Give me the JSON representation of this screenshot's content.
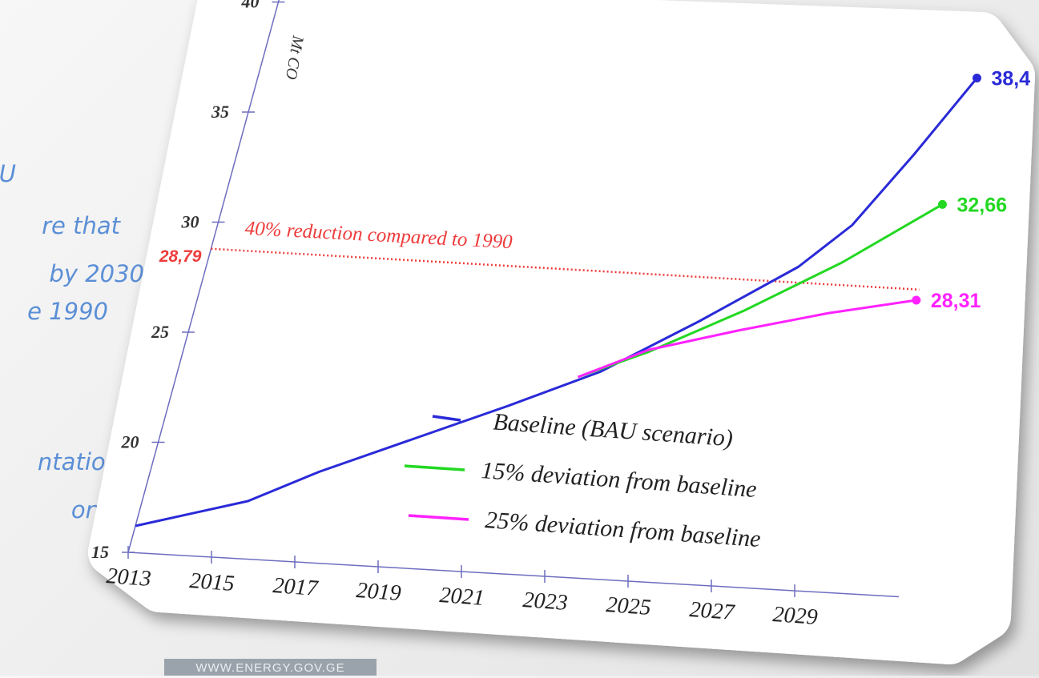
{
  "slide": {
    "side_text": [
      "U",
      "re that",
      "by 2030",
      "e 1990",
      "ntation",
      "on"
    ],
    "footer": "WWW.ENERGY.GOV.GE"
  },
  "chart_data": {
    "type": "line",
    "y_label": "Mt CO",
    "xlim": [
      2013,
      2030
    ],
    "xticks": [
      2013,
      2015,
      2017,
      2019,
      2021,
      2023,
      2025,
      2027,
      2029
    ],
    "ylim": [
      15,
      40
    ],
    "yticks": [
      15,
      20,
      25,
      30,
      35,
      40
    ],
    "reference_line": {
      "value": 28.79,
      "label": "28,79",
      "annotation": "40% reduction compared to 1990",
      "color": "#ee3b3b"
    },
    "series": [
      {
        "name": "Baseline (BAU scenario)",
        "color": "#2a2ad8",
        "x": [
          2013,
          2015.5,
          2017,
          2019,
          2021,
          2023,
          2025,
          2027,
          2028,
          2029,
          2030
        ],
        "values": [
          16.2,
          17.6,
          19.1,
          20.8,
          22.5,
          24.3,
          26.8,
          29.5,
          31.5,
          34.8,
          38.4
        ],
        "end_label": "38,4"
      },
      {
        "name": "15% deviation from baseline",
        "color": "#22d822",
        "x": [
          2022.5,
          2024,
          2026,
          2028,
          2030
        ],
        "values": [
          24.0,
          25.3,
          27.4,
          29.8,
          32.66
        ],
        "end_label": "32,66"
      },
      {
        "name": "25% deviation from baseline",
        "color": "#ff22ff",
        "x": [
          2022.5,
          2024,
          2026,
          2028,
          2030
        ],
        "values": [
          24.0,
          25.4,
          26.5,
          27.5,
          28.31
        ],
        "end_label": "28,31"
      }
    ]
  }
}
